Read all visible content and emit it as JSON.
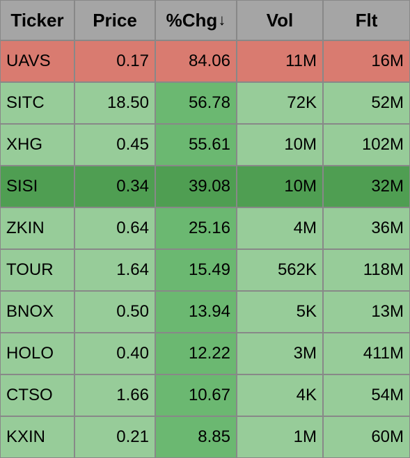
{
  "colors": {
    "header_bg": "#a5a5a5",
    "border": "#888888",
    "red": "#d97b70",
    "green_light": "#97cc99",
    "green_mid": "#6bb871",
    "green_dark": "#4f9e52",
    "text": "#000000"
  },
  "columns": [
    {
      "label": "Ticker",
      "sorted": false,
      "width": 107,
      "align": "left"
    },
    {
      "label": "Price",
      "sorted": false,
      "width": 116,
      "align": "right"
    },
    {
      "label": "%Chg",
      "sorted": true,
      "sort_dir": "desc",
      "sort_glyph": "↓",
      "width": 117,
      "align": "right"
    },
    {
      "label": "Vol",
      "sorted": false,
      "width": 124,
      "align": "right"
    },
    {
      "label": "Flt",
      "sorted": false,
      "width": 125,
      "align": "right"
    }
  ],
  "rows": [
    {
      "ticker": "UAVS",
      "price": "0.17",
      "pct_chg": "84.06",
      "vol": "11M",
      "flt": "16M",
      "bg": [
        "#d97b70",
        "#d97b70",
        "#d97b70",
        "#d97b70",
        "#d97b70"
      ]
    },
    {
      "ticker": "SITC",
      "price": "18.50",
      "pct_chg": "56.78",
      "vol": "72K",
      "flt": "52M",
      "bg": [
        "#97cc99",
        "#97cc99",
        "#6bb871",
        "#97cc99",
        "#97cc99"
      ]
    },
    {
      "ticker": "XHG",
      "price": "0.45",
      "pct_chg": "55.61",
      "vol": "10M",
      "flt": "102M",
      "bg": [
        "#97cc99",
        "#97cc99",
        "#6bb871",
        "#97cc99",
        "#97cc99"
      ]
    },
    {
      "ticker": "SISI",
      "price": "0.34",
      "pct_chg": "39.08",
      "vol": "10M",
      "flt": "32M",
      "bg": [
        "#4f9e52",
        "#4f9e52",
        "#4f9e52",
        "#4f9e52",
        "#4f9e52"
      ]
    },
    {
      "ticker": "ZKIN",
      "price": "0.64",
      "pct_chg": "25.16",
      "vol": "4M",
      "flt": "36M",
      "bg": [
        "#97cc99",
        "#97cc99",
        "#6bb871",
        "#97cc99",
        "#97cc99"
      ]
    },
    {
      "ticker": "TOUR",
      "price": "1.64",
      "pct_chg": "15.49",
      "vol": "562K",
      "flt": "118M",
      "bg": [
        "#97cc99",
        "#97cc99",
        "#6bb871",
        "#97cc99",
        "#97cc99"
      ]
    },
    {
      "ticker": "BNOX",
      "price": "0.50",
      "pct_chg": "13.94",
      "vol": "5K",
      "flt": "13M",
      "bg": [
        "#97cc99",
        "#97cc99",
        "#6bb871",
        "#97cc99",
        "#97cc99"
      ]
    },
    {
      "ticker": "HOLO",
      "price": "0.40",
      "pct_chg": "12.22",
      "vol": "3M",
      "flt": "411M",
      "bg": [
        "#97cc99",
        "#97cc99",
        "#6bb871",
        "#97cc99",
        "#97cc99"
      ]
    },
    {
      "ticker": "CTSO",
      "price": "1.66",
      "pct_chg": "10.67",
      "vol": "4K",
      "flt": "54M",
      "bg": [
        "#97cc99",
        "#97cc99",
        "#6bb871",
        "#97cc99",
        "#97cc99"
      ]
    },
    {
      "ticker": "KXIN",
      "price": "0.21",
      "pct_chg": "8.85",
      "vol": "1M",
      "flt": "60M",
      "bg": [
        "#97cc99",
        "#97cc99",
        "#6bb871",
        "#97cc99",
        "#97cc99"
      ]
    }
  ]
}
